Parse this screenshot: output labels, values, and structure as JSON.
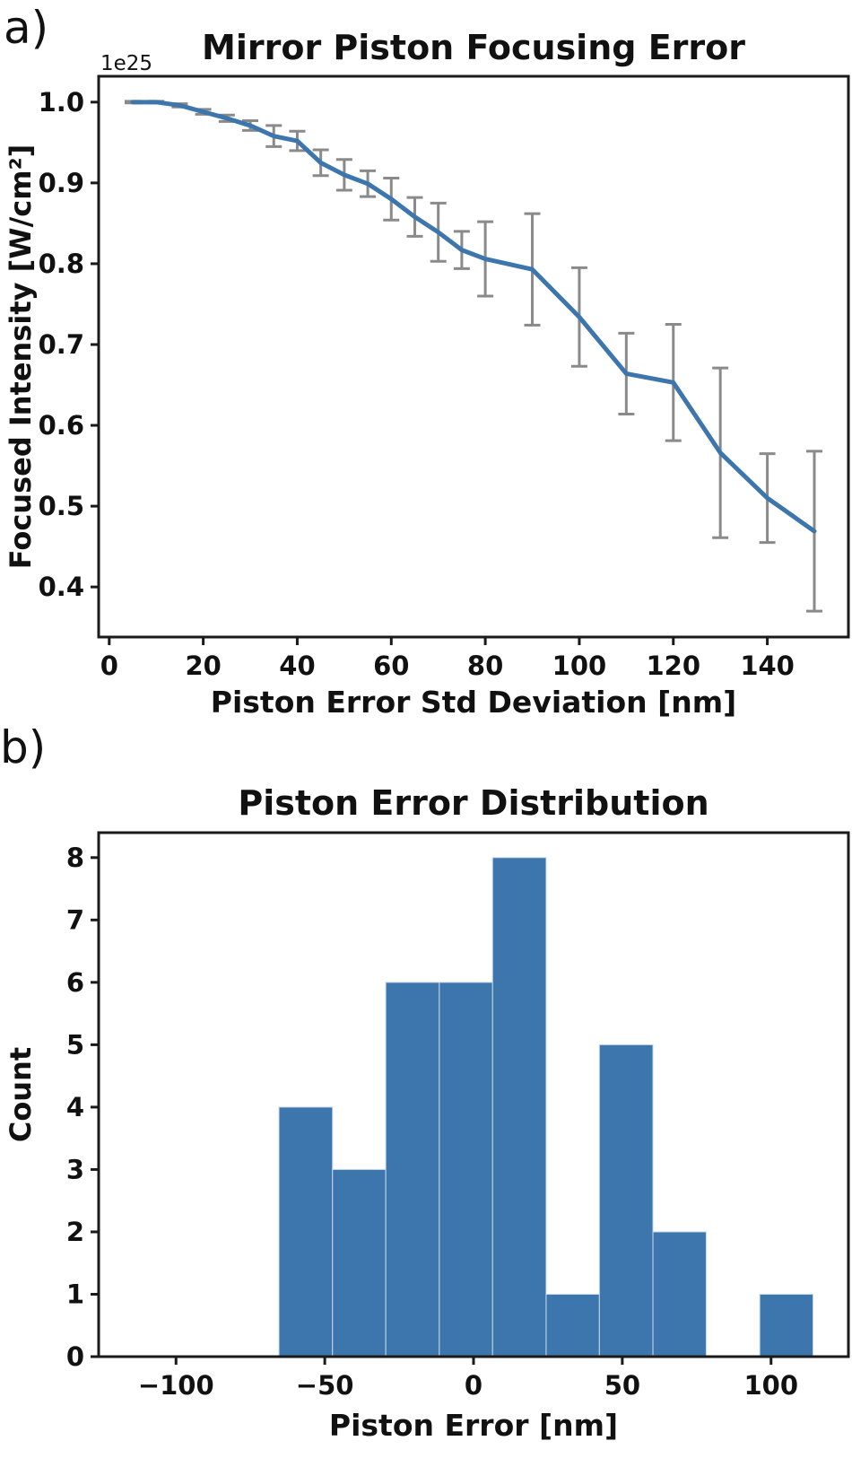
{
  "panels": {
    "a": {
      "label": "a)"
    },
    "b": {
      "label": "b)"
    }
  },
  "colors": {
    "series_blue": "#3d76ad",
    "error_gray": "#8a8a8a",
    "spine_black": "#1a1a1a",
    "text_black": "#111111"
  },
  "chart_data": [
    {
      "id": "focusing-error",
      "type": "line",
      "title": "Mirror Piston Focusing Error",
      "xlabel": "Piston Error Std Deviation [nm]",
      "ylabel": "Focused Intensity [W/cm²]",
      "offset_text": "1e25",
      "x": [
        5,
        10,
        15,
        20,
        25,
        30,
        35,
        40,
        45,
        50,
        55,
        60,
        65,
        70,
        75,
        80,
        90,
        100,
        110,
        120,
        130,
        140,
        150
      ],
      "y": [
        1.0,
        1.0,
        0.996,
        0.988,
        0.98,
        0.971,
        0.958,
        0.952,
        0.925,
        0.91,
        0.899,
        0.88,
        0.858,
        0.839,
        0.817,
        0.806,
        0.793,
        0.734,
        0.664,
        0.653,
        0.566,
        0.51,
        0.469
      ],
      "yerr": [
        0.001,
        0.001,
        0.002,
        0.003,
        0.004,
        0.006,
        0.013,
        0.012,
        0.016,
        0.019,
        0.016,
        0.026,
        0.024,
        0.036,
        0.023,
        0.046,
        0.069,
        0.061,
        0.05,
        0.072,
        0.105,
        0.055,
        0.099
      ],
      "y_scale_note": "y values in units of 1e25 W/cm^2",
      "xlim": [
        -2.25,
        157.25
      ],
      "ylim": [
        0.338,
        1.032
      ],
      "xticks": [
        0,
        20,
        40,
        60,
        80,
        100,
        120,
        140
      ],
      "yticks": [
        0.4,
        0.5,
        0.6,
        0.7,
        0.8,
        0.9,
        1.0
      ],
      "grid": false,
      "legend": false
    },
    {
      "id": "piston-error-distribution",
      "type": "bar",
      "title": "Piston Error Distribution",
      "xlabel": "Piston Error [nm]",
      "ylabel": "Count",
      "bin_edges": [
        -65.4,
        -47.4,
        -29.5,
        -11.5,
        6.4,
        24.4,
        42.3,
        60.3,
        78.2,
        96.2,
        114.1
      ],
      "counts": [
        4,
        3,
        6,
        6,
        8,
        1,
        5,
        2,
        0,
        1
      ],
      "xlim": [
        -126,
        126
      ],
      "ylim": [
        0,
        8.4
      ],
      "xticks": [
        -100,
        -50,
        0,
        50,
        100
      ],
      "yticks": [
        0,
        1,
        2,
        3,
        4,
        5,
        6,
        7,
        8
      ],
      "grid": false,
      "legend": false
    }
  ]
}
